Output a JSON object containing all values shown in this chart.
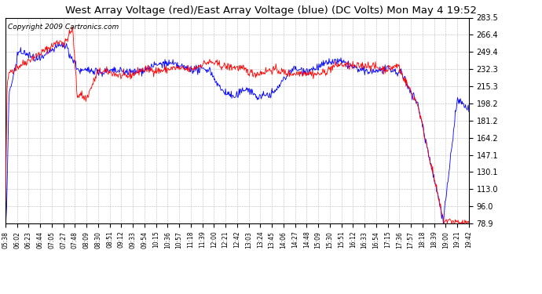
{
  "title": "West Array Voltage (red)/East Array Voltage (blue) (DC Volts) Mon May 4 19:52",
  "copyright": "Copyright 2009 Cartronics.com",
  "yticks": [
    78.9,
    96.0,
    113.0,
    130.1,
    147.1,
    164.2,
    181.2,
    198.2,
    215.3,
    232.3,
    249.4,
    266.4,
    283.5
  ],
  "ymin": 78.9,
  "ymax": 283.5,
  "xtick_labels": [
    "05:38",
    "06:02",
    "06:23",
    "06:44",
    "07:05",
    "07:27",
    "07:48",
    "08:09",
    "08:30",
    "08:51",
    "09:12",
    "09:33",
    "09:54",
    "10:15",
    "10:36",
    "10:57",
    "11:18",
    "11:39",
    "12:00",
    "12:21",
    "12:42",
    "13:03",
    "13:24",
    "13:45",
    "14:06",
    "14:27",
    "14:48",
    "15:09",
    "15:30",
    "15:51",
    "16:12",
    "16:33",
    "16:54",
    "17:15",
    "17:36",
    "17:57",
    "18:18",
    "18:39",
    "19:00",
    "19:21",
    "19:42"
  ],
  "bg_color": "#ffffff",
  "plot_bg": "#ffffff",
  "grid_color": "#bbbbbb",
  "red_color": "#ff0000",
  "blue_color": "#0000ff",
  "title_fontsize": 9.5,
  "copyright_fontsize": 6.5
}
